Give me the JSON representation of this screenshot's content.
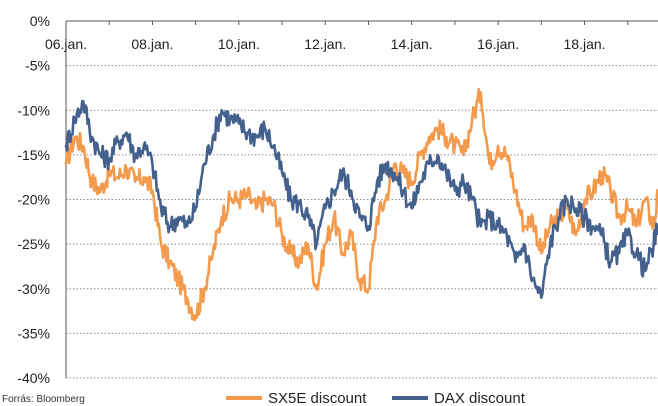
{
  "source_note": "Forrás: Bloomberg",
  "colors": {
    "sx5e": "#F39A4C",
    "dax": "#44618E",
    "grid": "#8C8C8C",
    "axis": "#555555"
  },
  "chart_data": {
    "type": "line",
    "title": "",
    "xlabel": "",
    "ylabel": "",
    "x_tick_labels": [
      "06.jan.",
      "08.jan.",
      "10.jan.",
      "12.jan.",
      "14.jan.",
      "16.jan.",
      "18.jan."
    ],
    "y_tick_labels": [
      "0%",
      "-5%",
      "-10%",
      "-15%",
      "-20%",
      "-25%",
      "-30%",
      "-35%",
      "-40%"
    ],
    "ylim": [
      -40,
      0
    ],
    "xlim": [
      0,
      13.7
    ],
    "grid": "horizontal dotted",
    "legend": "bottom",
    "x_unit_note": "x values are days since 06.jan.",
    "series": [
      {
        "name": "SX5E discount",
        "color": "#F39A4C",
        "x": [
          0,
          0.2,
          0.4,
          0.6,
          0.8,
          1.0,
          1.2,
          1.4,
          1.6,
          1.8,
          2.0,
          2.2,
          2.4,
          2.6,
          2.8,
          3.0,
          3.2,
          3.4,
          3.6,
          3.8,
          4.0,
          4.2,
          4.4,
          4.6,
          4.8,
          5.0,
          5.2,
          5.4,
          5.6,
          5.8,
          6.0,
          6.2,
          6.4,
          6.6,
          6.8,
          7.0,
          7.2,
          7.4,
          7.6,
          7.8,
          8.0,
          8.2,
          8.4,
          8.6,
          8.8,
          9.0,
          9.2,
          9.4,
          9.6,
          9.8,
          10.0,
          10.2,
          10.4,
          10.6,
          10.8,
          11.0,
          11.2,
          11.4,
          11.6,
          11.8,
          12.0,
          12.2,
          12.4,
          12.6,
          12.8,
          13.0,
          13.2,
          13.4,
          13.6,
          13.7
        ],
        "values": [
          -16,
          -13,
          -14,
          -18,
          -19,
          -17,
          -17.5,
          -16.5,
          -18,
          -17.5,
          -19,
          -25,
          -27,
          -29,
          -31,
          -33,
          -30,
          -26,
          -22,
          -20,
          -20,
          -19.5,
          -21,
          -20,
          -20.5,
          -24,
          -26,
          -27,
          -25,
          -30,
          -25,
          -22,
          -26,
          -24,
          -29,
          -30,
          -22,
          -20,
          -16,
          -17,
          -18,
          -15,
          -13,
          -12,
          -13,
          -14,
          -15,
          -11,
          -8,
          -16,
          -14,
          -15,
          -19,
          -23,
          -22,
          -26,
          -23,
          -22,
          -21,
          -24,
          -20,
          -19,
          -17,
          -19,
          -22,
          -21,
          -23,
          -20,
          -23,
          -19.5
        ]
      },
      {
        "name": "DAX discount",
        "color": "#44618E",
        "x": [
          0,
          0.2,
          0.4,
          0.6,
          0.8,
          1.0,
          1.2,
          1.4,
          1.6,
          1.8,
          2.0,
          2.2,
          2.4,
          2.6,
          2.8,
          3.0,
          3.2,
          3.4,
          3.6,
          3.8,
          4.0,
          4.2,
          4.4,
          4.6,
          4.8,
          5.0,
          5.2,
          5.4,
          5.6,
          5.8,
          6.0,
          6.2,
          6.4,
          6.6,
          6.8,
          7.0,
          7.2,
          7.4,
          7.6,
          7.8,
          8.0,
          8.2,
          8.4,
          8.6,
          8.8,
          9.0,
          9.2,
          9.4,
          9.6,
          9.8,
          10.0,
          10.2,
          10.4,
          10.6,
          10.8,
          11.0,
          11.2,
          11.4,
          11.6,
          11.8,
          12.0,
          12.2,
          12.4,
          12.6,
          12.8,
          13.0,
          13.2,
          13.4,
          13.6,
          13.7
        ],
        "values": [
          -14,
          -11,
          -9,
          -13,
          -15,
          -15.5,
          -13.5,
          -12.5,
          -15,
          -14,
          -16,
          -21,
          -23,
          -22,
          -23,
          -21,
          -16,
          -13,
          -10,
          -11,
          -11.5,
          -12.5,
          -13,
          -12,
          -14,
          -17,
          -20,
          -20.5,
          -22,
          -25,
          -21,
          -19,
          -17,
          -19,
          -22,
          -23,
          -18,
          -16,
          -17,
          -19,
          -21,
          -18,
          -16,
          -15,
          -17,
          -19,
          -18,
          -20,
          -23,
          -22,
          -23,
          -24,
          -27,
          -25,
          -29,
          -31,
          -25,
          -22,
          -20,
          -21,
          -22,
          -23,
          -24,
          -27,
          -26,
          -24,
          -26,
          -28,
          -25,
          -23
        ]
      }
    ]
  }
}
